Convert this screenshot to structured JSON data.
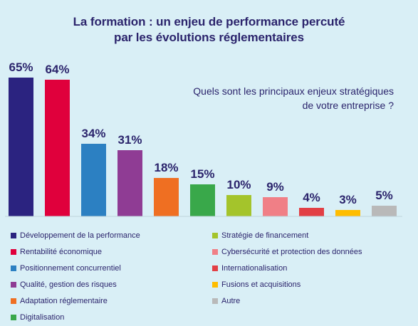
{
  "title_line1": "La formation : un enjeu de performance percuté",
  "title_line2": "par les évolutions réglementaires",
  "question_line1": "Quels sont les principaux enjeux stratégiques",
  "question_line2": "de votre entreprise ?",
  "chart_data": {
    "type": "bar",
    "categories": [
      "Développement de la performance",
      "Rentabilité économique",
      "Positionnement concurrentiel",
      "Qualité, gestion des risques",
      "Adaptation réglementaire",
      "Digitalisation",
      "Stratégie de financement",
      "Cybersécurité et protection des données",
      "Internationalisation",
      "Fusions et acquisitions",
      "Autre"
    ],
    "values": [
      65,
      64,
      34,
      31,
      18,
      15,
      10,
      9,
      4,
      3,
      5
    ],
    "labels": [
      "65%",
      "64%",
      "34%",
      "31%",
      "18%",
      "15%",
      "10%",
      "9%",
      "4%",
      "3%",
      "5%"
    ],
    "colors": [
      "#2b2380",
      "#e0003c",
      "#2c80c2",
      "#8f3c94",
      "#ef6f22",
      "#39a84a",
      "#a4c42b",
      "#f07f86",
      "#e23f45",
      "#ffbd00",
      "#b9b9b9"
    ],
    "ylim": [
      0,
      65
    ],
    "grid": false,
    "legend_position": "bottom"
  },
  "legend": [
    {
      "label": "Développement de la performance",
      "color": "#2b2380"
    },
    {
      "label": "Rentabilité économique",
      "color": "#e0003c"
    },
    {
      "label": "Positionnement concurrentiel",
      "color": "#2c80c2"
    },
    {
      "label": "Qualité, gestion des risques",
      "color": "#8f3c94"
    },
    {
      "label": "Adaptation réglementaire",
      "color": "#ef6f22"
    },
    {
      "label": "Digitalisation",
      "color": "#39a84a"
    },
    {
      "label": "Stratégie de financement",
      "color": "#a4c42b"
    },
    {
      "label": "Cybersécurité et protection des données",
      "color": "#f07f86"
    },
    {
      "label": "Internationalisation",
      "color": "#e23f45"
    },
    {
      "label": "Fusions et acquisitions",
      "color": "#ffbd00"
    },
    {
      "label": "Autre",
      "color": "#b9b9b9"
    }
  ]
}
